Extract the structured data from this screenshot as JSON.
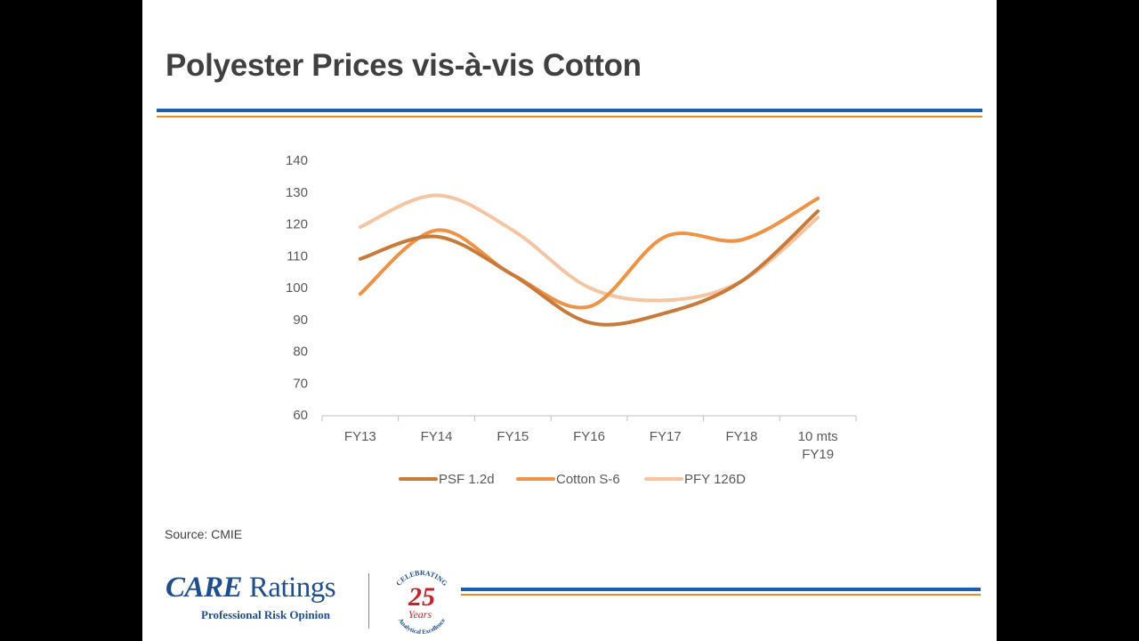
{
  "slide": {
    "title": "Polyester Prices vis-à-vis Cotton",
    "source": "Source: CMIE"
  },
  "branding": {
    "logo_care": "CARE",
    "logo_ratings": "Ratings",
    "logo_tagline": "Professional Risk Opinion",
    "badge_top": "CELEBRATING",
    "badge_number": "25",
    "badge_years": "Years",
    "badge_bottom": "Analytical Excellence"
  },
  "colors": {
    "title": "#404040",
    "rule_blue": "#1f5fa8",
    "rule_orange": "#e0902a",
    "badge_red": "#c8202a"
  },
  "chart_data": {
    "type": "line",
    "title": "",
    "xlabel": "",
    "ylabel": "",
    "categories": [
      "FY13",
      "FY14",
      "FY15",
      "FY16",
      "FY17",
      "FY18",
      "10 mts FY19"
    ],
    "ylim": [
      60,
      140
    ],
    "yticks": [
      60,
      70,
      80,
      90,
      100,
      110,
      120,
      130,
      140
    ],
    "grid": false,
    "legend_position": "bottom",
    "smooth": true,
    "series": [
      {
        "name": "PSF 1.2d",
        "color": "#c87a3a",
        "values": [
          109,
          116,
          104,
          89,
          92,
          102,
          124
        ]
      },
      {
        "name": "Cotton S-6",
        "color": "#ee9245",
        "values": [
          98,
          118,
          104,
          94,
          116,
          115,
          128
        ]
      },
      {
        "name": "PFY 126D",
        "color": "#f5c5a3",
        "values": [
          119,
          129,
          118,
          100,
          96,
          102,
          122
        ]
      }
    ]
  }
}
